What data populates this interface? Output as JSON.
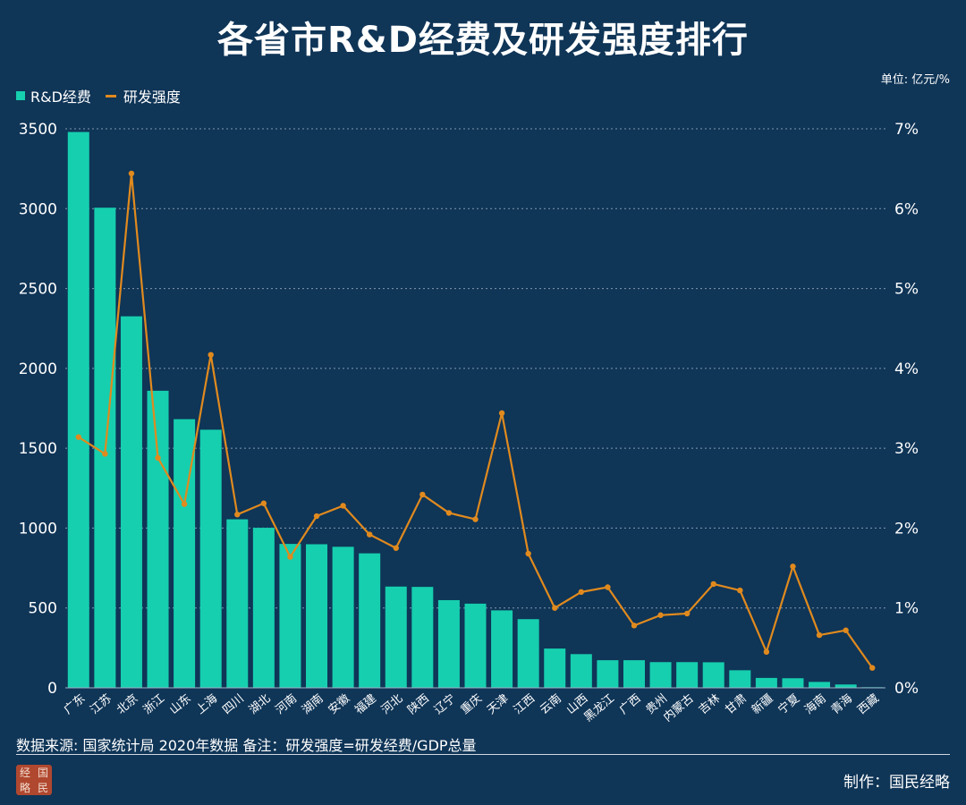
{
  "title": "各省市R&D经费及研发强度排行",
  "unit_note": "单位: 亿元/%",
  "legend": {
    "bar_label": "R&D经费",
    "line_label": "研发强度"
  },
  "colors": {
    "background": "#0f3557",
    "bar": "#16cfaf",
    "line": "#e08a1e",
    "grid": "#9fb2c4",
    "text": "#ffffff"
  },
  "source_note": "数据来源: 国家统计局 2020年数据  备注：研发强度=研发经费/GDP总量",
  "credit": "制作：国民经略",
  "seal_chars": [
    "经",
    "国",
    "略",
    "民"
  ],
  "chart_data": {
    "type": "bar",
    "title": "各省市R&D经费及研发强度排行",
    "categories": [
      "广东",
      "江苏",
      "北京",
      "浙江",
      "山东",
      "上海",
      "四川",
      "湖北",
      "河南",
      "湖南",
      "安徽",
      "福建",
      "河北",
      "陕西",
      "辽宁",
      "重庆",
      "天津",
      "江西",
      "云南",
      "山西",
      "黑龙江",
      "广西",
      "贵州",
      "内蒙古",
      "吉林",
      "甘肃",
      "新疆",
      "宁夏",
      "海南",
      "青海",
      "西藏"
    ],
    "series": [
      {
        "name": "R&D经费",
        "type": "bar",
        "axis": "left",
        "values": [
          3480,
          3006,
          2326,
          1860,
          1682,
          1616,
          1055,
          1002,
          901,
          899,
          883,
          842,
          634,
          632,
          549,
          527,
          485,
          430,
          246,
          211,
          173,
          173,
          161,
          161,
          160,
          110,
          62,
          60,
          37,
          21,
          4
        ]
      },
      {
        "name": "研发强度",
        "type": "line",
        "axis": "right",
        "values": [
          3.14,
          2.93,
          6.44,
          2.88,
          2.3,
          4.17,
          2.17,
          2.31,
          1.64,
          2.15,
          2.28,
          1.92,
          1.75,
          2.42,
          2.19,
          2.11,
          3.44,
          1.68,
          1.0,
          1.2,
          1.26,
          0.78,
          0.91,
          0.93,
          1.3,
          1.22,
          0.45,
          1.52,
          0.66,
          0.72,
          0.25
        ]
      }
    ],
    "y_left": {
      "ylim": [
        0,
        3500
      ],
      "ticks": [
        "0",
        "500",
        "1000",
        "1500",
        "2000",
        "2500",
        "3000",
        "3500"
      ]
    },
    "y_right": {
      "ylim": [
        0,
        7
      ],
      "ticks": [
        "0%",
        "1%",
        "2%",
        "3%",
        "4%",
        "5%",
        "6%",
        "7%"
      ]
    },
    "grid": true,
    "legend_position": "top-left"
  }
}
